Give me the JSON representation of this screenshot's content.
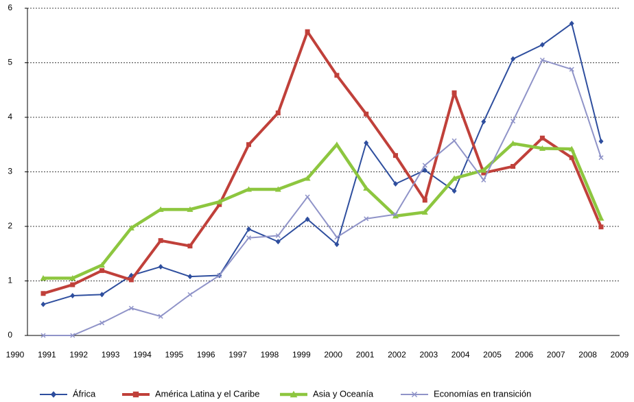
{
  "chart_data": {
    "type": "line",
    "categories": [
      "1990",
      "1991",
      "1992",
      "1993",
      "1994",
      "1995",
      "1996",
      "1997",
      "1998",
      "1999",
      "2000",
      "2001",
      "2002",
      "2003",
      "2004",
      "2005",
      "2006",
      "2007",
      "2008",
      "2009"
    ],
    "series": [
      {
        "name": "África",
        "color": "#2e4e9e",
        "marker": "diamond",
        "values": [
          0.57,
          0.73,
          0.75,
          1.1,
          1.26,
          1.08,
          1.1,
          1.95,
          1.72,
          2.13,
          1.67,
          3.53,
          2.78,
          3.03,
          2.65,
          3.92,
          5.07,
          5.33,
          5.72,
          3.56
        ]
      },
      {
        "name": "América Latina y el Caribe",
        "color": "#c0403a",
        "marker": "square",
        "values": [
          0.77,
          0.93,
          1.19,
          1.02,
          1.74,
          1.64,
          2.4,
          3.5,
          4.08,
          5.57,
          4.77,
          4.06,
          3.3,
          2.48,
          4.45,
          2.98,
          3.1,
          3.62,
          3.26,
          1.99
        ]
      },
      {
        "name": "Asia y Oceanía",
        "color": "#8dc63f",
        "marker": "triangle",
        "values": [
          1.05,
          1.05,
          1.29,
          1.97,
          2.31,
          2.31,
          2.45,
          2.68,
          2.68,
          2.88,
          3.5,
          2.7,
          2.19,
          2.26,
          2.88,
          3.03,
          3.52,
          3.43,
          3.42,
          2.15
        ]
      },
      {
        "name": "Economías en transición",
        "color": "#8f93c8",
        "marker": "x",
        "values": [
          0,
          0,
          0.23,
          0.5,
          0.35,
          0.75,
          1.1,
          1.79,
          1.83,
          2.54,
          1.8,
          2.14,
          2.22,
          3.12,
          3.57,
          2.85,
          3.93,
          5.05,
          4.88,
          3.26
        ]
      }
    ],
    "ylim": [
      0,
      6
    ],
    "yticks": [
      0,
      1,
      2,
      3,
      4,
      5,
      6
    ],
    "grid": true,
    "legend": "bottom"
  }
}
